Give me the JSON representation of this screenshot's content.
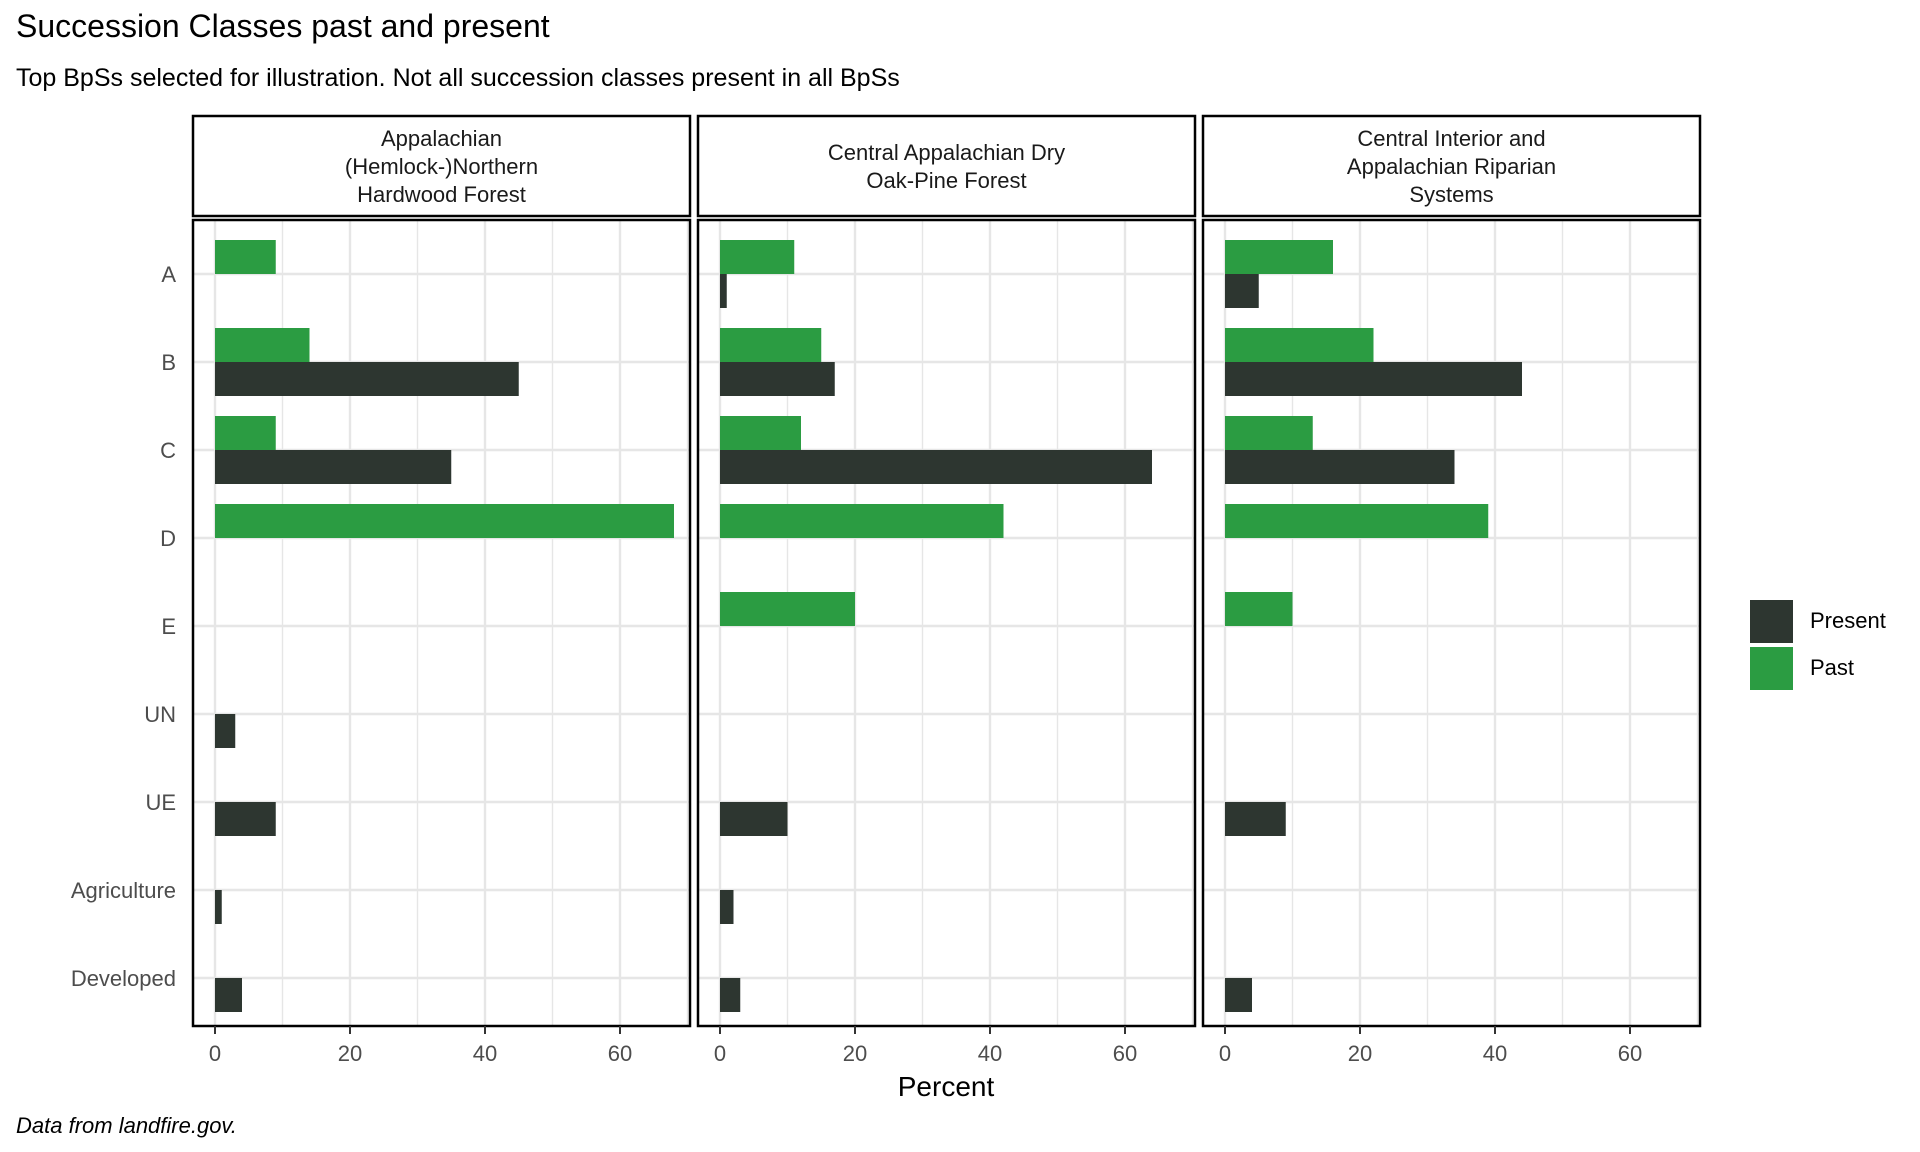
{
  "header": {
    "title": "Succession Classes past and present",
    "subtitle": "Top BpSs selected for illustration. Not all succession classes present in all BpSs",
    "caption": "Data from landfire.gov."
  },
  "colors": {
    "present": "#2d3630",
    "past": "#2b9c42",
    "grid": "#e6e6e6",
    "frame": "#000000"
  },
  "chart_data": {
    "type": "bar",
    "orientation": "horizontal",
    "xlabel": "Percent",
    "ylabel": "",
    "xlim": [
      0,
      70
    ],
    "x_ticks": [
      0,
      20,
      40,
      60
    ],
    "grid": true,
    "legend_position": "right",
    "legend": [
      "Present",
      "Past"
    ],
    "categories": [
      "A",
      "B",
      "C",
      "D",
      "E",
      "UN",
      "UE",
      "Agriculture",
      "Developed"
    ],
    "panels": [
      {
        "label": "Appalachian\n(Hemlock-)Northern\nHardwood Forest",
        "series": [
          {
            "name": "Past",
            "values": [
              9,
              14,
              9,
              68,
              null,
              null,
              null,
              null,
              null
            ]
          },
          {
            "name": "Present",
            "values": [
              null,
              45,
              35,
              null,
              null,
              3,
              9,
              1,
              4
            ]
          }
        ]
      },
      {
        "label": "Central Appalachian Dry\nOak-Pine Forest",
        "series": [
          {
            "name": "Past",
            "values": [
              11,
              15,
              12,
              42,
              20,
              null,
              null,
              null,
              null
            ]
          },
          {
            "name": "Present",
            "values": [
              1,
              17,
              64,
              null,
              null,
              null,
              10,
              2,
              3
            ]
          }
        ]
      },
      {
        "label": "Central Interior and\nAppalachian Riparian\nSystems",
        "series": [
          {
            "name": "Past",
            "values": [
              16,
              22,
              13,
              39,
              10,
              null,
              null,
              null,
              null
            ]
          },
          {
            "name": "Present",
            "values": [
              5,
              44,
              34,
              null,
              null,
              null,
              9,
              null,
              4
            ]
          }
        ]
      }
    ]
  }
}
